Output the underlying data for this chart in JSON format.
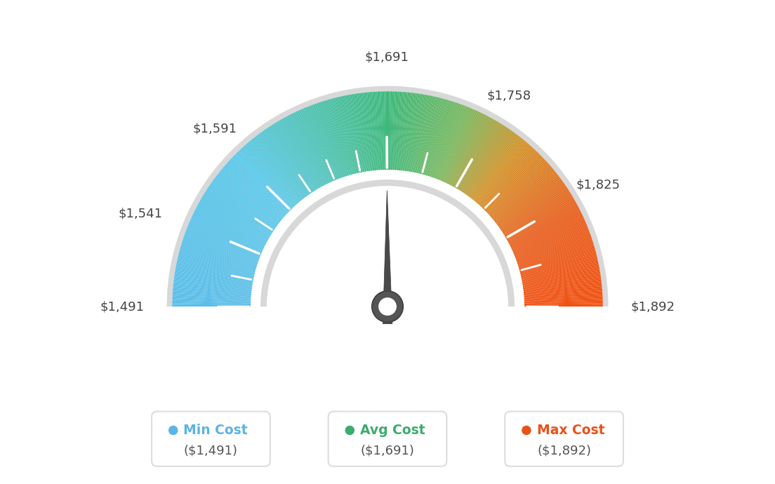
{
  "min_val": 1491,
  "max_val": 1892,
  "avg_val": 1691,
  "tick_labels": [
    "$1,491",
    "$1,541",
    "$1,591",
    "$1,691",
    "$1,758",
    "$1,825",
    "$1,892"
  ],
  "tick_values": [
    1491,
    1541,
    1591,
    1691,
    1758,
    1825,
    1892
  ],
  "extra_tick_values": [
    1516,
    1566,
    1616,
    1641,
    1666,
    1724,
    1791,
    1858
  ],
  "legend_min_color": "#5ab4e5",
  "legend_avg_color": "#3dab6e",
  "legend_max_color": "#e8521a",
  "bg_color": "#ffffff",
  "needle_color": "#555555",
  "gauge_colors": [
    [
      0.0,
      "#5bbde8"
    ],
    [
      0.25,
      "#5dc8e8"
    ],
    [
      0.42,
      "#4abfa0"
    ],
    [
      0.5,
      "#3db87a"
    ],
    [
      0.62,
      "#7ab860"
    ],
    [
      0.72,
      "#d4922a"
    ],
    [
      0.85,
      "#e86020"
    ],
    [
      1.0,
      "#f05010"
    ]
  ],
  "outer_ring_color": "#d0d0d0",
  "inner_ring_color": "#d0d0d0",
  "inner_fill_color": "#f5f5f5"
}
